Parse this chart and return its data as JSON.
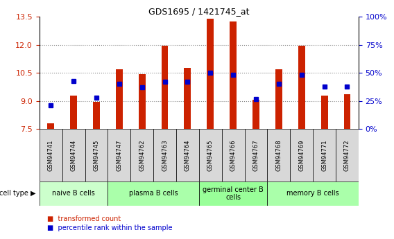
{
  "title": "GDS1695 / 1421745_at",
  "samples": [
    "GSM94741",
    "GSM94744",
    "GSM94745",
    "GSM94747",
    "GSM94762",
    "GSM94763",
    "GSM94764",
    "GSM94765",
    "GSM94766",
    "GSM94767",
    "GSM94768",
    "GSM94769",
    "GSM94771",
    "GSM94772"
  ],
  "transformed_count": [
    7.8,
    9.3,
    8.95,
    10.7,
    10.45,
    11.95,
    10.75,
    13.4,
    13.25,
    9.05,
    10.7,
    11.95,
    9.3,
    9.35
  ],
  "percentile_rank": [
    21,
    43,
    28,
    40,
    37,
    42,
    42,
    50,
    48,
    27,
    40,
    48,
    38,
    38
  ],
  "ylim_left": [
    7.5,
    13.5
  ],
  "ylim_right": [
    0,
    100
  ],
  "yticks_left": [
    7.5,
    9.0,
    10.5,
    12.0,
    13.5
  ],
  "yticks_right": [
    0,
    25,
    50,
    75,
    100
  ],
  "ytick_labels_right": [
    "0%",
    "25%",
    "50%",
    "75%",
    "100%"
  ],
  "bar_color": "#cc2200",
  "marker_color": "#0000cc",
  "bar_bottom": 7.5,
  "cell_types": [
    {
      "label": "naive B cells",
      "start": 0,
      "end": 3,
      "color": "#ccffcc"
    },
    {
      "label": "plasma B cells",
      "start": 3,
      "end": 7,
      "color": "#aaffaa"
    },
    {
      "label": "germinal center B\ncells",
      "start": 7,
      "end": 10,
      "color": "#99ff99"
    },
    {
      "label": "memory B cells",
      "start": 10,
      "end": 14,
      "color": "#aaffaa"
    }
  ],
  "cell_type_label": "cell type",
  "legend_items": [
    {
      "label": "transformed count",
      "color": "#cc2200"
    },
    {
      "label": "percentile rank within the sample",
      "color": "#0000cc"
    }
  ],
  "grid_color": "#888888",
  "bg_color": "#ffffff",
  "sample_bg_color": "#d8d8d8",
  "plot_bg_color": "#ffffff",
  "bar_width": 0.3
}
